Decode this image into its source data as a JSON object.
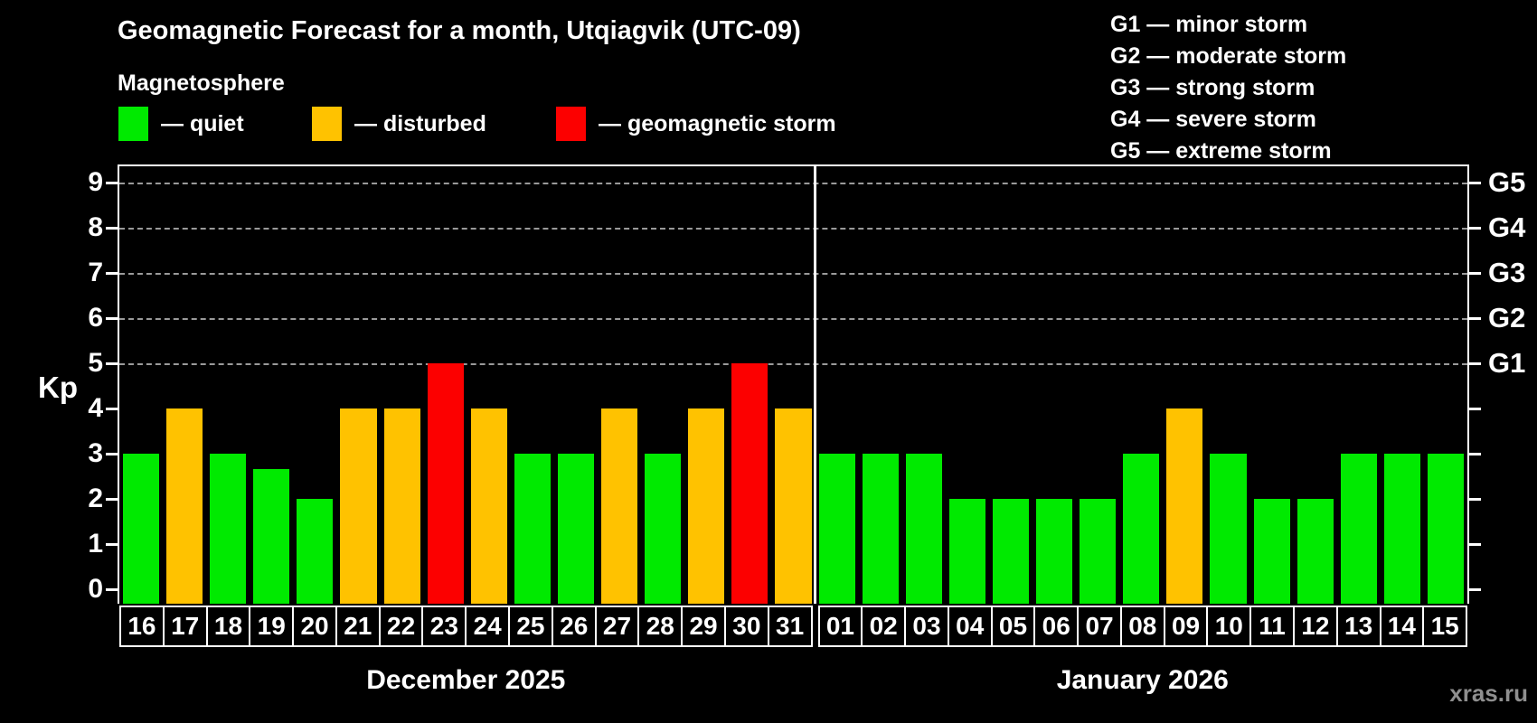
{
  "title": "Geomagnetic Forecast for a month, Utqiagvik (UTC-09)",
  "subtitle": "Magnetosphere",
  "legend": [
    {
      "status": "quiet",
      "label": "— quiet",
      "color": "#00ea00"
    },
    {
      "status": "disturbed",
      "label": "— disturbed",
      "color": "#ffc200"
    },
    {
      "status": "storm",
      "label": "— geomagnetic storm",
      "color": "#fc0000"
    }
  ],
  "g_legend": [
    "G1 — minor storm",
    "G2 — moderate storm",
    "G3 — strong storm",
    "G4 — severe storm",
    "G5 — extreme storm"
  ],
  "y_axis_label": "Kp",
  "y_ticks": [
    "0",
    "1",
    "2",
    "3",
    "4",
    "5",
    "6",
    "7",
    "8",
    "9"
  ],
  "right_axis_labels": [
    {
      "label": "G1",
      "kp": 5
    },
    {
      "label": "G2",
      "kp": 6
    },
    {
      "label": "G3",
      "kp": 7
    },
    {
      "label": "G4",
      "kp": 8
    },
    {
      "label": "G5",
      "kp": 9
    }
  ],
  "watermark": "xras.ru",
  "chart_data": {
    "type": "bar",
    "title": "Geomagnetic Forecast for a month, Utqiagvik (UTC-09)",
    "subtitle": "Magnetosphere",
    "ylabel": "Kp",
    "ylim": [
      0,
      9.4
    ],
    "grid": "horizontal dashed lines at Kp 5,6,7,8,9",
    "gridlines_at": [
      5,
      6,
      7,
      8,
      9
    ],
    "legend_position": "top-left",
    "months": [
      {
        "caption": "December 2025",
        "days": [
          "16",
          "17",
          "18",
          "19",
          "20",
          "21",
          "22",
          "23",
          "24",
          "25",
          "26",
          "27",
          "28",
          "29",
          "30",
          "31"
        ],
        "kp": [
          3,
          4,
          3,
          2.67,
          2,
          4,
          4,
          5,
          4,
          3,
          3,
          4,
          3,
          4,
          5,
          4
        ]
      },
      {
        "caption": "January 2026",
        "days": [
          "01",
          "02",
          "03",
          "04",
          "05",
          "06",
          "07",
          "08",
          "09",
          "10",
          "11",
          "12",
          "13",
          "14",
          "15"
        ],
        "kp": [
          3,
          3,
          3,
          2,
          2,
          2,
          2,
          3,
          4,
          3,
          2,
          2,
          3,
          3,
          3
        ]
      }
    ],
    "color_rules": [
      {
        "status": "quiet",
        "condition": "kp < 4",
        "color": "#00ea00"
      },
      {
        "status": "disturbed",
        "condition": "4 <= kp < 5",
        "color": "#ffc200"
      },
      {
        "status": "storm",
        "condition": "kp >= 5",
        "color": "#fc0000"
      }
    ],
    "right_axis_labels": {
      "G1": 5,
      "G2": 6,
      "G3": 7,
      "G4": 8,
      "G5": 9
    }
  }
}
